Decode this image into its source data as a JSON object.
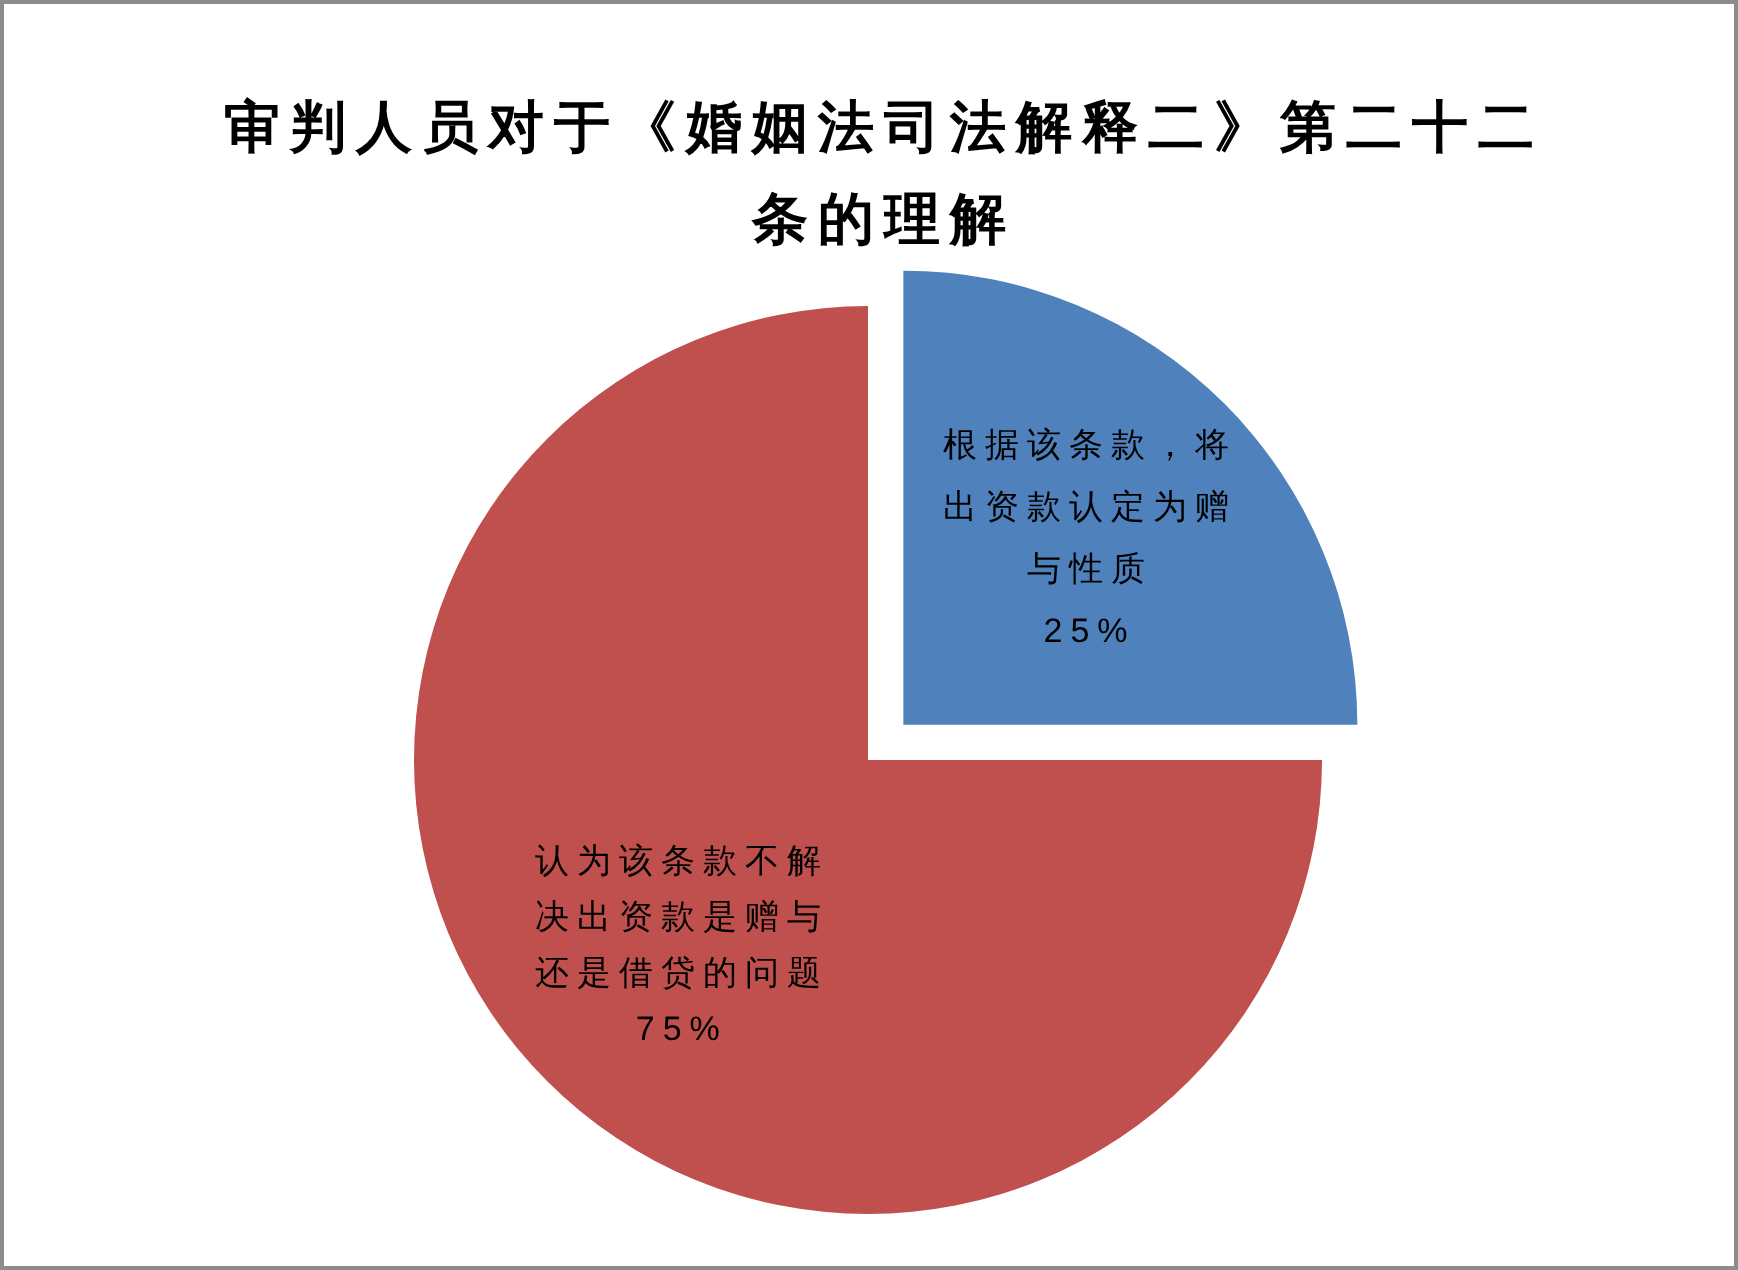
{
  "chart_data": {
    "type": "pie",
    "title": "审判人员对于《婚姻法司法解释二》第二十二条的理解",
    "categories": [
      "根据该条款，将出资款认定为赠与性质",
      "认为该条款不解决出资款是赠与还是借贷的问题"
    ],
    "values": [
      25,
      75
    ],
    "colors": [
      "#4f81bd",
      "#c0504d"
    ],
    "value_labels": [
      "25%",
      "75%"
    ]
  }
}
